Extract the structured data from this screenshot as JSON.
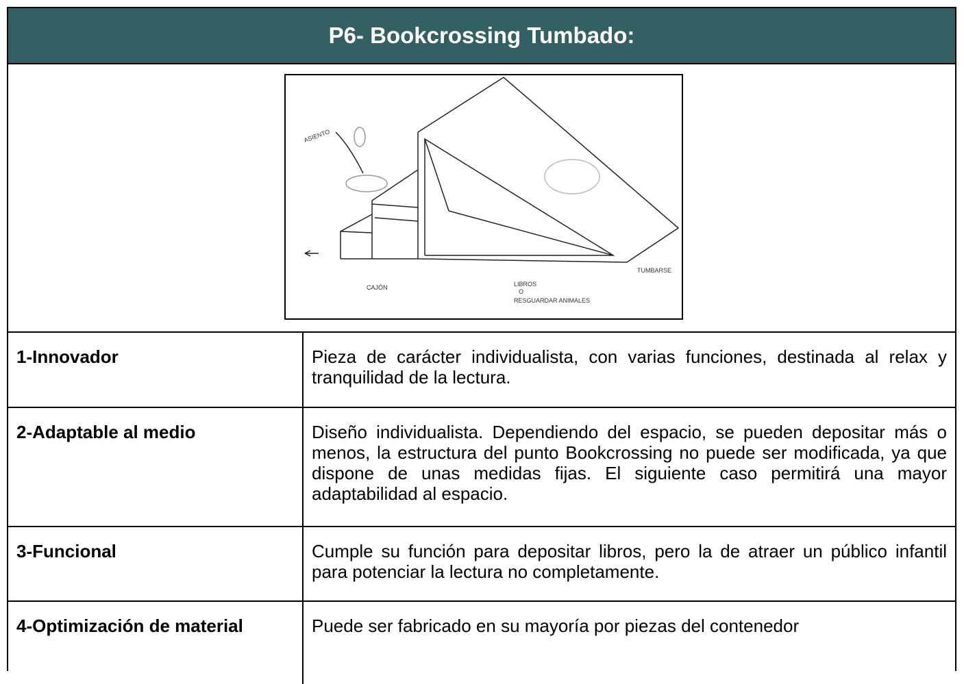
{
  "header": {
    "title": "P6- Bookcrossing Tumbado:"
  },
  "sketch": {
    "labels": [
      "ASIENTO",
      "CAJÓN",
      "LIBROS",
      "O",
      "RESGUARDAR ANIMALES",
      "TUMBARSE"
    ]
  },
  "table": {
    "rows": [
      [
        "1-Innovador",
        "Pieza de carácter individualista, con varias funciones, destinada al relax y tranquilidad de la lectura."
      ],
      [
        "2-Adaptable al medio",
        "Diseño individualista. Dependiendo del espacio, se pueden depositar más o menos, la estructura del punto Bookcrossing no puede ser modificada, ya que dispone de unas medidas fijas. El siguiente caso permitirá una mayor adaptabilidad al espacio."
      ],
      [
        "3-Funcional",
        "Cumple su función para depositar libros, pero la de atraer un público infantil para potenciar la lectura no completamente."
      ],
      [
        "4-Optimización de material",
        "Puede ser fabricado en su mayoría por piezas del contenedor"
      ]
    ]
  }
}
